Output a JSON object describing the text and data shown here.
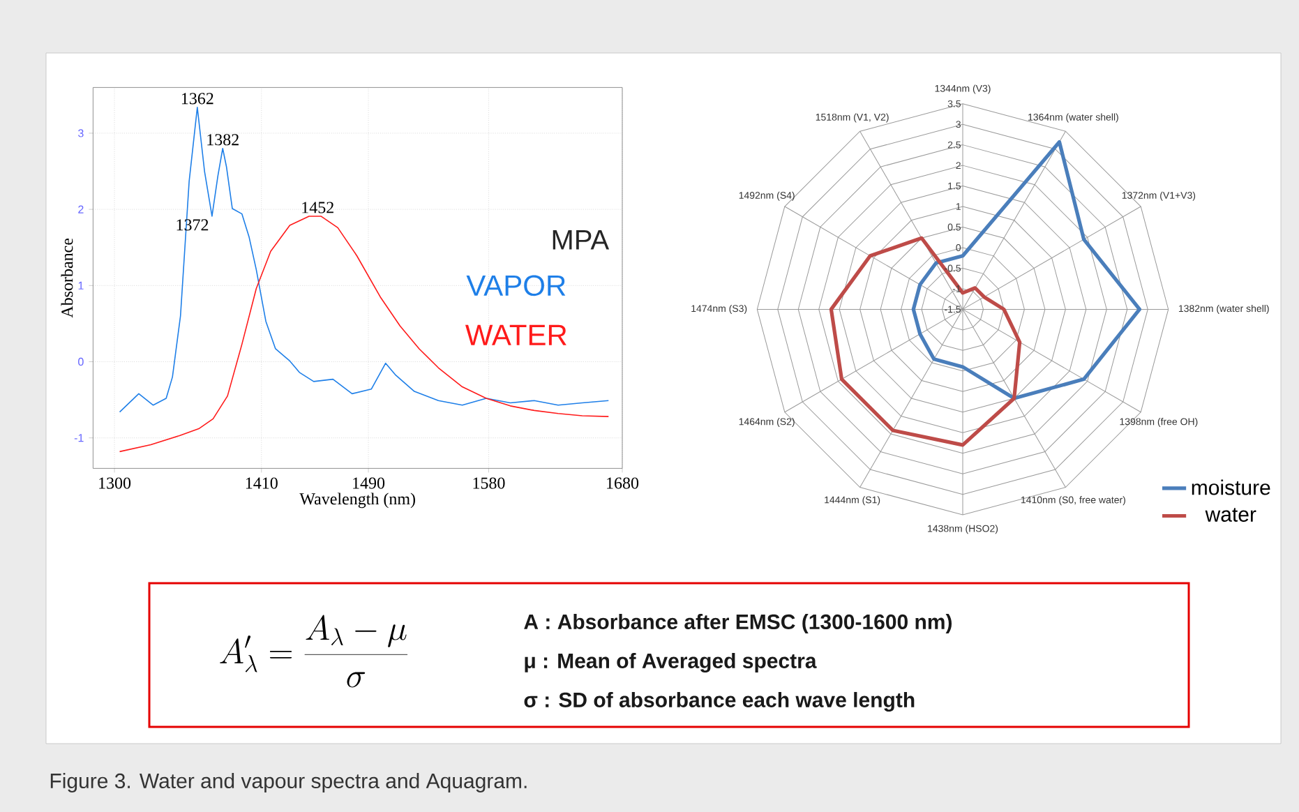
{
  "chart_data": [
    {
      "type": "line",
      "xlabel": "Wavelength (nm)",
      "ylabel": "Absorbance",
      "xlim": [
        1284,
        1680
      ],
      "ylim": [
        -1.4,
        3.6
      ],
      "xticks": [
        1300,
        1410,
        1490,
        1580,
        1680
      ],
      "yticks": [
        -1,
        0,
        1,
        2,
        3
      ],
      "grid": true,
      "legend": false,
      "series": [
        {
          "name": "VAPOR",
          "color": "#1e7fe8",
          "x": [
            1303.9,
            1318.2,
            1329.0,
            1338.7,
            1343.4,
            1349.4,
            1355.9,
            1362.0,
            1367.4,
            1373.0,
            1377.4,
            1381.0,
            1383.8,
            1388.2,
            1395.4,
            1400.7,
            1406.1,
            1413.3,
            1420.5,
            1431.2,
            1438.4,
            1449.1,
            1463.5,
            1477.8,
            1492.2,
            1502.9,
            1510.1,
            1524.4,
            1542.4,
            1560.3,
            1578.2,
            1596.2,
            1614.1,
            1632.0,
            1650.0,
            1669.7
          ],
          "values": [
            -0.66,
            -0.42,
            -0.57,
            -0.48,
            -0.2,
            0.6,
            2.37,
            3.34,
            2.5,
            1.91,
            2.44,
            2.8,
            2.56,
            2.01,
            1.94,
            1.64,
            1.21,
            0.53,
            0.17,
            0.01,
            -0.14,
            -0.26,
            -0.23,
            -0.42,
            -0.36,
            -0.02,
            -0.17,
            -0.39,
            -0.51,
            -0.57,
            -0.48,
            -0.54,
            -0.51,
            -0.57,
            -0.54,
            -0.51
          ]
        },
        {
          "name": "WATER",
          "color": "#ff1a1a",
          "x": [
            1303.9,
            1327.2,
            1348.7,
            1363.1,
            1373.8,
            1384.6,
            1395.4,
            1406.1,
            1416.9,
            1431.2,
            1445.6,
            1454.5,
            1467.1,
            1481.4,
            1499.3,
            1513.7,
            1528.0,
            1542.4,
            1560.3,
            1578.2,
            1596.2,
            1614.1,
            1632.0,
            1650.0,
            1669.7
          ],
          "values": [
            -1.18,
            -1.09,
            -0.97,
            -0.88,
            -0.75,
            -0.45,
            0.23,
            0.96,
            1.45,
            1.79,
            1.91,
            1.91,
            1.76,
            1.39,
            0.84,
            0.47,
            0.17,
            -0.08,
            -0.33,
            -0.48,
            -0.58,
            -0.64,
            -0.68,
            -0.71,
            -0.72
          ]
        }
      ],
      "annotations": [
        {
          "text": "1362",
          "x": 1362,
          "y": 3.34
        },
        {
          "text": "1382",
          "x": 1381,
          "y": 2.8
        },
        {
          "text": "1372",
          "x": 1373,
          "y": 1.91
        },
        {
          "text": "1452",
          "x": 1452,
          "y": 1.91
        },
        "MPA"
      ]
    },
    {
      "type": "radar",
      "categories": [
        "1344nm (V3)",
        "1364nm (water shell)",
        "1372nm (V1+V3)",
        "1382nm (water shell)",
        "1398nm (free OH)",
        "1410nm (S0, free water)",
        "1438nm (HSO2)",
        "1444nm (S1)",
        "1464nm (S2)",
        "1474nm (S3)",
        "1492nm (S4)",
        "1518nm (V1, V2)"
      ],
      "ylim": [
        -1.5,
        3.5
      ],
      "yticks": [
        -1.5,
        -1,
        -0.5,
        0,
        0.5,
        1,
        1.5,
        2,
        2.5,
        3,
        3.5
      ],
      "legend": "bottom right",
      "series": [
        {
          "name": "moisture",
          "color": "#4a7ebb",
          "values": [
            -0.2,
            3.2,
            1.9,
            2.8,
            1.9,
            1.0,
            -0.1,
            -0.1,
            -0.3,
            -0.3,
            -0.3,
            -0.2
          ]
        },
        {
          "name": "water",
          "color": "#be4b48",
          "values": [
            -1.1,
            -0.9,
            -0.9,
            -0.5,
            0.1,
            1.0,
            1.8,
            1.9,
            1.9,
            1.7,
            1.1,
            0.5
          ]
        }
      ]
    },
    {
      "type": "other",
      "annotations": [
        "A'_{\\lambda} = \\frac{A_{\\lambda}-\\mu}{\\sigma}",
        "A : Absorbance after EMSC (1300-1600 nm)",
        "μ : Mean of Averaged spectra",
        "σ : SD of absorbance each wave length",
        "Figure 3. Water and vapour spectra and Aquagram."
      ]
    }
  ]
}
